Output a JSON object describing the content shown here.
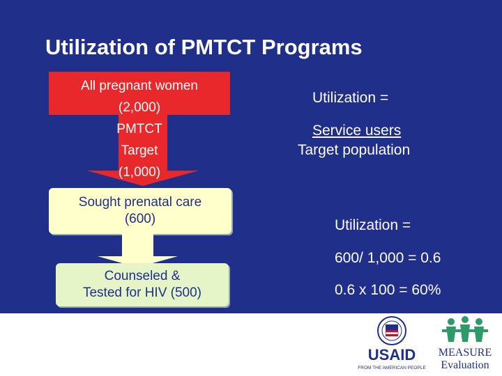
{
  "title": "Utilization of PMTCT Programs",
  "flow": {
    "red_line1": "All pregnant women",
    "red_line2": "(2,000)",
    "red_line3": "PMTCT",
    "red_line4": "Target",
    "red_line5": "(1,000)",
    "yellow_line1": "Sought prenatal care",
    "yellow_line2": "(600)",
    "green_line1": "Counseled &",
    "green_line2": "Tested for HIV (500)"
  },
  "formula": {
    "label1": "Utilization  =",
    "numerator": "Service users",
    "denominator": "Target population",
    "label2": "Utilization =",
    "calc1": "600/ 1,000 = 0.6",
    "calc2": "0.6 x 100 = 60%"
  },
  "logos": {
    "usaid_word": "USAID",
    "usaid_tagline": "FROM THE AMERICAN PEOPLE",
    "measure_word": "MEASURE",
    "measure_sub": "Evaluation"
  },
  "colors": {
    "background": "#1f2f8a",
    "red_box": "#e8282a",
    "yellow_box": "#ffffcc",
    "green_box": "#e6f5c8"
  }
}
